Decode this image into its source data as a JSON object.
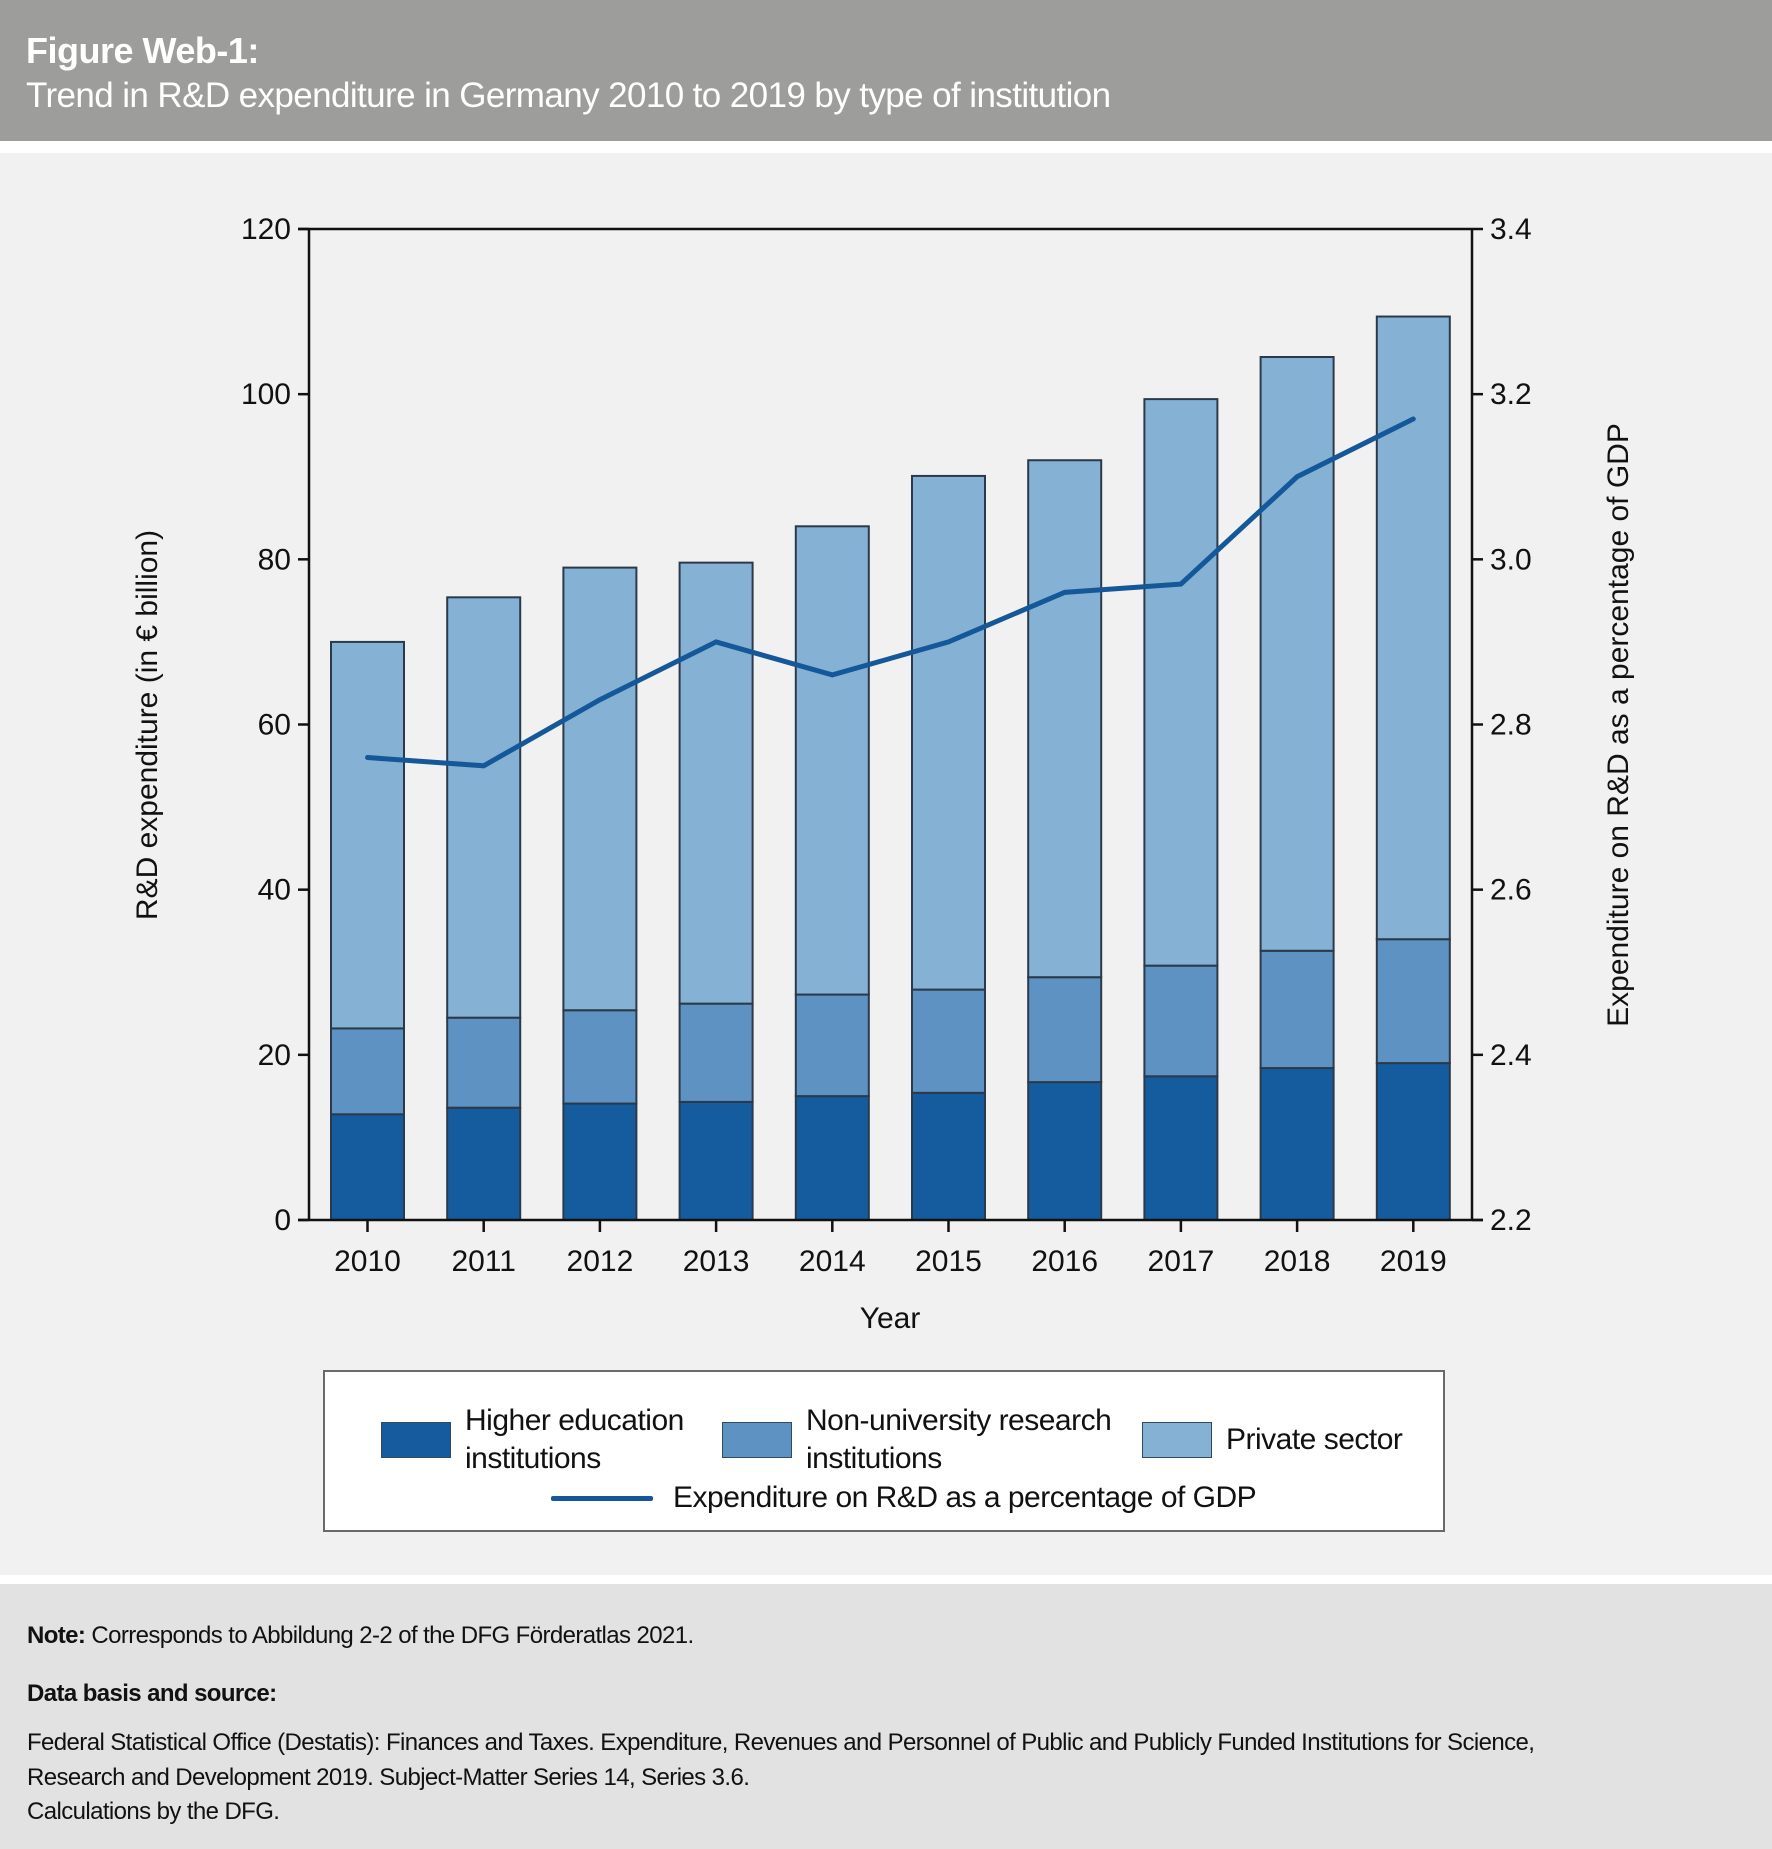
{
  "header": {
    "figure_label": "Figure Web-1:",
    "title": "Trend in R&D expenditure in Germany 2010 to 2019 by type of institution"
  },
  "colors": {
    "header_bg": "#9d9d9c",
    "higher_education": "#155c9f",
    "non_university": "#5e92c2",
    "private_sector": "#85b1d4",
    "gdp_line": "#14589a"
  },
  "chart_data": {
    "type": "bar",
    "stacked": true,
    "title": "Trend in R&D expenditure in Germany 2010 to 2019 by type of institution",
    "xlabel": "Year",
    "ylabel": "R&D expenditure (in € billion)",
    "y2label": "Expenditure on R&D as a percentage of GDP",
    "categories": [
      "2010",
      "2011",
      "2012",
      "2013",
      "2014",
      "2015",
      "2016",
      "2017",
      "2018",
      "2019"
    ],
    "ylim": [
      0,
      120
    ],
    "yticks": [
      "0",
      "20",
      "40",
      "60",
      "80",
      "100",
      "120"
    ],
    "y2lim": [
      2.2,
      3.4
    ],
    "y2ticks": [
      "2.2",
      "2.4",
      "2.6",
      "2.8",
      "3.0",
      "3.2",
      "3.4"
    ],
    "grid": false,
    "legend_position": "bottom",
    "series": [
      {
        "name": "Higher education institutions",
        "kind": "bar",
        "axis": "left",
        "values": [
          12.8,
          13.6,
          14.1,
          14.3,
          15.0,
          15.4,
          16.7,
          17.4,
          18.4,
          19.0
        ]
      },
      {
        "name": "Non-university research institutions",
        "kind": "bar",
        "axis": "left",
        "values": [
          10.4,
          10.9,
          11.3,
          11.9,
          12.3,
          12.5,
          12.7,
          13.4,
          14.2,
          15.0
        ]
      },
      {
        "name": "Private sector",
        "kind": "bar",
        "axis": "left",
        "values": [
          46.8,
          50.9,
          53.6,
          53.4,
          56.7,
          62.2,
          62.6,
          68.6,
          71.9,
          75.4
        ]
      },
      {
        "name": "Expenditure on R&D as a percentage of GDP",
        "kind": "line",
        "axis": "right",
        "values": [
          2.76,
          2.75,
          2.83,
          2.9,
          2.86,
          2.9,
          2.96,
          2.97,
          3.1,
          3.17
        ]
      }
    ]
  },
  "legend": {
    "items": [
      {
        "label_line1": "Higher education",
        "label_line2": "institutions"
      },
      {
        "label_line1": "Non-university research",
        "label_line2": "institutions"
      },
      {
        "label_line1": "Private sector"
      },
      {
        "label_line1": "Expenditure on R&D as a percentage of GDP"
      }
    ]
  },
  "notes": {
    "note_label": "Note:",
    "note_text": " Corresponds to Abbildung 2-2 of the DFG Förderatlas 2021.",
    "source_label": "Data basis and source:",
    "source_line1": "Federal Statistical Office (Destatis): Finances and Taxes. Expenditure, Revenues and Personnel of Public and Publicly Funded Institutions for Science,",
    "source_line2": "Research and Development 2019. Subject-Matter Series 14, Series 3.6.",
    "source_line3": "Calculations by the DFG."
  }
}
